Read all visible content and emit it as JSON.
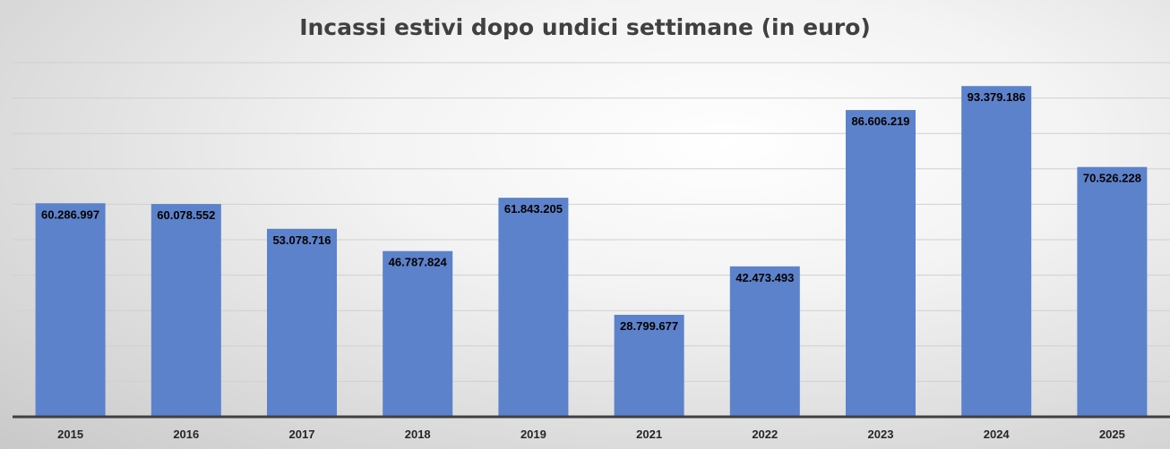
{
  "chart_data": {
    "type": "bar",
    "title": "Incassi estivi dopo undici settimane (in euro)",
    "categories": [
      "2015",
      "2016",
      "2017",
      "2018",
      "2019",
      "2021",
      "2022",
      "2023",
      "2024",
      "2025"
    ],
    "values": [
      60286997,
      60078552,
      53078716,
      46787824,
      61843205,
      28799677,
      42473493,
      86606219,
      93379186,
      70526228
    ],
    "data_labels": [
      "60.286.997",
      "60.078.552",
      "53.078.716",
      "46.787.824",
      "61.843.205",
      "28.799.677",
      "42.473.493",
      "86.606.219",
      "93.379.186",
      "70.526.228"
    ],
    "ylim": [
      0,
      100000000
    ],
    "grid": true,
    "legend": "none",
    "colors": {
      "bar": "#5B82CB",
      "grid": "#d0d0d0",
      "axis": "#404040"
    }
  }
}
